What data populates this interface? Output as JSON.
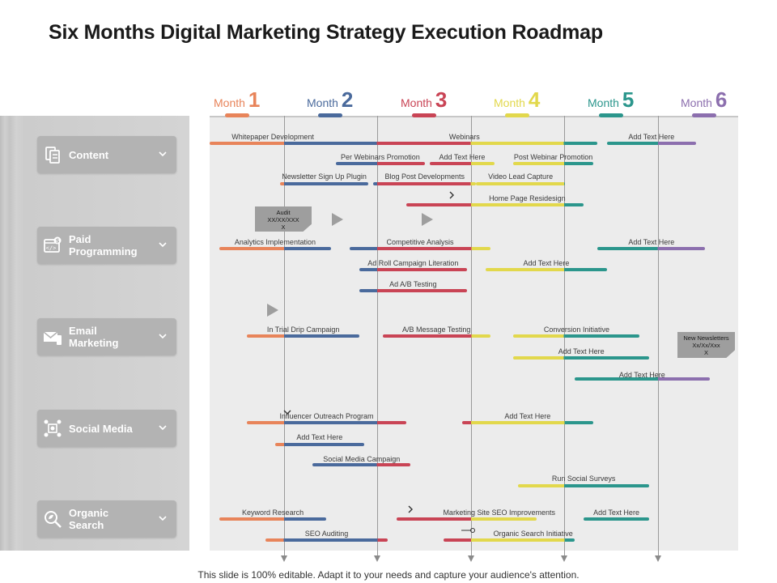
{
  "title": "Six Months Digital Marketing Strategy Execution Roadmap",
  "footer": "This slide is 100% editable. Adapt it to your needs and capture your audience's attention.",
  "colors": {
    "m1": "#e8845a",
    "m2": "#4a6a9c",
    "m3": "#c94455",
    "m4": "#e2d84c",
    "m5": "#2b968c",
    "m6": "#8c6fae"
  },
  "months": [
    {
      "word": "Month",
      "num": "1",
      "color": "#e8845a"
    },
    {
      "word": "Month",
      "num": "2",
      "color": "#4a6a9c"
    },
    {
      "word": "Month",
      "num": "3",
      "color": "#c94455"
    },
    {
      "word": "Month",
      "num": "4",
      "color": "#e2d84c"
    },
    {
      "word": "Month",
      "num": "5",
      "color": "#2b968c"
    },
    {
      "word": "Month",
      "num": "6",
      "color": "#8c6fae"
    }
  ],
  "categories": [
    {
      "label": "Content",
      "icon": "content-icon"
    },
    {
      "label": "Paid\nProgramming",
      "icon": "paid-programming-icon"
    },
    {
      "label": "Email\nMarketing",
      "icon": "email-icon"
    },
    {
      "label": "Social Media",
      "icon": "social-media-icon"
    },
    {
      "label": "Organic\nSearch",
      "icon": "organic-search-icon"
    }
  ],
  "tasks": [
    {
      "label": "Whitepaper Development",
      "start": 0.2,
      "end": 1.55
    },
    {
      "label": "Webinars",
      "start": 1.5,
      "end": 4.35
    },
    {
      "label": "Add Text Here",
      "start": 4.45,
      "end": 5.4
    },
    {
      "label": "Per Webinars Promotion",
      "start": 1.55,
      "end": 2.5
    },
    {
      "label": "Add Text Here",
      "start": 2.55,
      "end": 3.25
    },
    {
      "label": "Post Webinar Promotion",
      "start": 3.45,
      "end": 4.3
    },
    {
      "label": "Newsletter Sign Up Plugin",
      "start": 0.95,
      "end": 1.9
    },
    {
      "label": "Blog Post Developments",
      "start": 1.95,
      "end": 3.05
    },
    {
      "label": "Video Lead Capture",
      "start": 3.05,
      "end": 4.0
    },
    {
      "label": "Home Page Residesign",
      "start": 2.3,
      "end": 4.2
    },
    {
      "label": "Analytics Implementation",
      "start": 0.3,
      "end": 1.5
    },
    {
      "label": "Competitive Analysis",
      "start": 1.7,
      "end": 3.2
    },
    {
      "label": "Add Text Here",
      "start": 4.35,
      "end": 5.5
    },
    {
      "label": "Ad Roll Campaign Literation",
      "start": 1.8,
      "end": 2.95
    },
    {
      "label": "Add Text Here",
      "start": 3.15,
      "end": 4.45
    },
    {
      "label": "Ad A/B Testing",
      "start": 1.8,
      "end": 2.95
    },
    {
      "label": "In Trial Drip Campaign",
      "start": 0.6,
      "end": 1.8
    },
    {
      "label": "A/B Message Testing",
      "start": 2.05,
      "end": 3.2
    },
    {
      "label": "Conversion Initiative",
      "start": 3.45,
      "end": 4.8
    },
    {
      "label": "Add Text Here",
      "start": 3.45,
      "end": 4.9
    },
    {
      "label": "Add Text Here",
      "start": 4.1,
      "end": 5.55
    },
    {
      "label": "Influencer Outreach Program",
      "start": 0.6,
      "end": 2.3
    },
    {
      "label": "Add Text Here",
      "start": 2.9,
      "end": 4.3
    },
    {
      "label": "Add Text Here",
      "start": 0.9,
      "end": 1.85
    },
    {
      "label": "Social Media Campaign",
      "start": 1.3,
      "end": 2.35
    },
    {
      "label": "Run Social Surveys",
      "start": 3.5,
      "end": 4.9
    },
    {
      "label": "Keyword Research",
      "start": 0.3,
      "end": 1.45
    },
    {
      "label": "Marketing Site SEO Improvements",
      "start": 2.2,
      "end": 3.7
    },
    {
      "label": "Add Text Here",
      "start": 4.2,
      "end": 4.9
    },
    {
      "label": "SEO Auditing",
      "start": 0.8,
      "end": 2.1
    },
    {
      "label": "Organic Search Initiative",
      "start": 2.7,
      "end": 4.1
    }
  ],
  "callouts": [
    {
      "text": "Audit\nXX/XX/XXX\nX"
    },
    {
      "text": "New Newsletters\nXx/Xx/Xxx\nX"
    }
  ]
}
